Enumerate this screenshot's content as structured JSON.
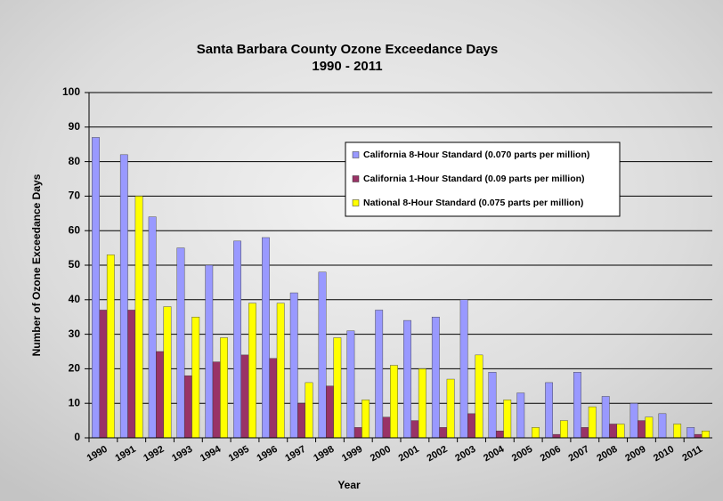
{
  "chart_data": {
    "type": "bar",
    "title": "Santa Barbara County Ozone Exceedance Days",
    "subtitle": "1990 - 2011",
    "x_label": "Year",
    "y_label": "Number of Ozone Exceedance Days",
    "categories": [
      "1990",
      "1991",
      "1992",
      "1993",
      "1994",
      "1995",
      "1996",
      "1997",
      "1998",
      "1999",
      "2000",
      "2001",
      "2002",
      "2003",
      "2004",
      "2005",
      "2006",
      "2007",
      "2008",
      "2009",
      "2010",
      "2011"
    ],
    "series": [
      {
        "name": "California 8-Hour Standard (0.070 parts per million)",
        "color": "#9999ff",
        "values": [
          87,
          82,
          64,
          55,
          50,
          57,
          58,
          42,
          48,
          31,
          37,
          34,
          35,
          40,
          19,
          13,
          16,
          19,
          12,
          10,
          7,
          3
        ]
      },
      {
        "name": "California 1-Hour Standard (0.09 parts per million)",
        "color": "#993366",
        "values": [
          37,
          37,
          25,
          18,
          22,
          24,
          23,
          10,
          15,
          3,
          6,
          5,
          3,
          7,
          2,
          0,
          1,
          3,
          4,
          5,
          0,
          1
        ]
      },
      {
        "name": "National 8-Hour Standard (0.075 parts per million)",
        "color": "#ffff00",
        "values": [
          53,
          70,
          38,
          35,
          29,
          39,
          39,
          16,
          29,
          11,
          21,
          20,
          17,
          24,
          11,
          3,
          5,
          9,
          4,
          6,
          4,
          2
        ]
      }
    ],
    "ylim": [
      0,
      100
    ],
    "yticks": [
      0,
      10,
      20,
      30,
      40,
      50,
      60,
      70,
      80,
      90,
      100
    ],
    "grid": true
  }
}
